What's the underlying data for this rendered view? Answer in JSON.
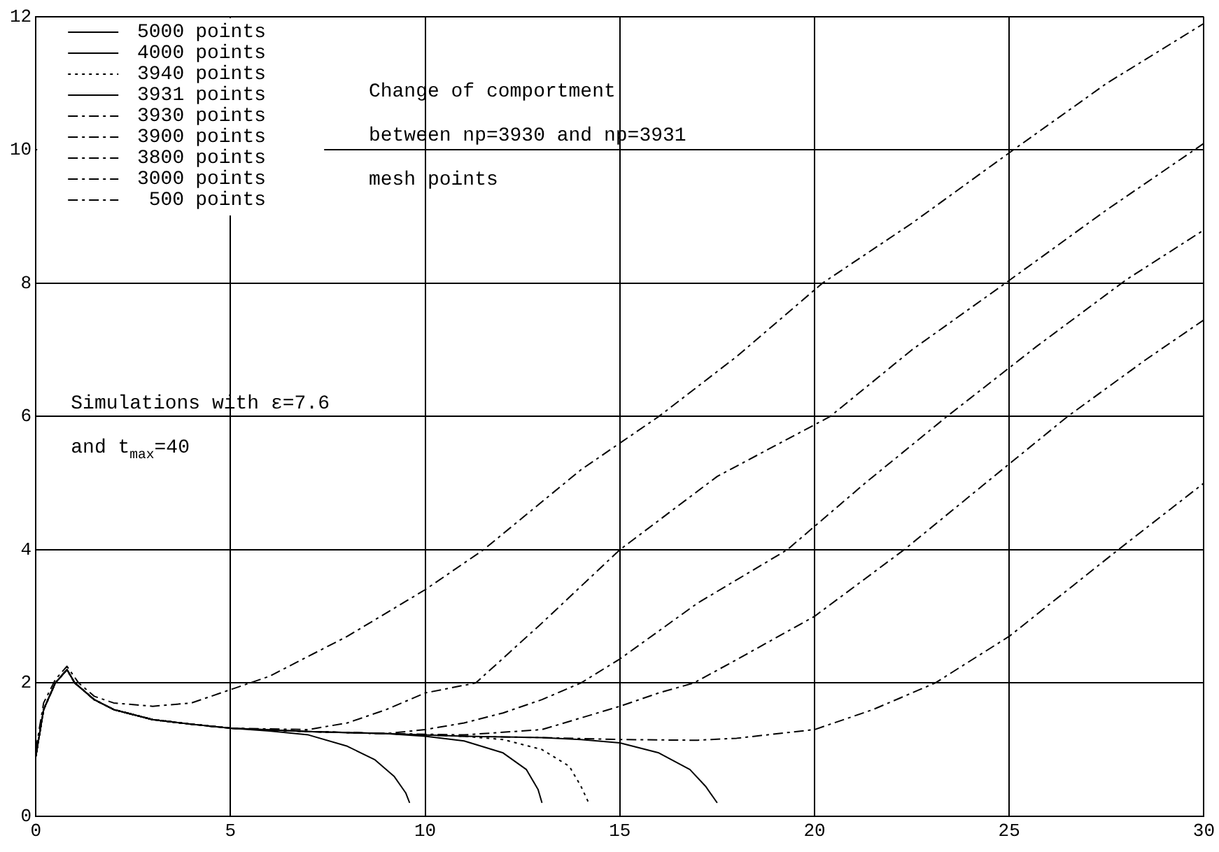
{
  "chart_data": {
    "type": "line",
    "xlim": [
      0,
      30
    ],
    "ylim": [
      0,
      12
    ],
    "xticks": [
      0,
      5,
      10,
      15,
      20,
      25,
      30
    ],
    "yticks": [
      0,
      2,
      4,
      6,
      8,
      10,
      12
    ],
    "grid": true,
    "legend": "top left",
    "marker": "none",
    "annotations": [
      "Change of comportment",
      "between np=3930 and np=3931",
      "mesh points",
      "Simulations with ε=7.6",
      "and t$_{max}$=40"
    ],
    "series": [
      {
        "name": "5000 points",
        "color": "#000000",
        "line_style": "solid",
        "x": [
          0,
          0.2,
          0.5,
          0.8,
          1,
          1.5,
          2,
          3,
          4,
          5,
          6,
          7,
          8,
          8.7,
          9.2,
          9.5,
          9.6
        ],
        "values": [
          0.9,
          1.6,
          2.0,
          2.2,
          2.0,
          1.75,
          1.6,
          1.45,
          1.38,
          1.32,
          1.28,
          1.22,
          1.05,
          0.85,
          0.6,
          0.35,
          0.2
        ]
      },
      {
        "name": "4000 points",
        "color": "#000000",
        "line_style": "solid",
        "x": [
          0,
          0.2,
          0.5,
          0.8,
          1,
          1.5,
          2,
          3,
          4,
          5,
          7,
          9,
          10,
          11,
          12,
          12.6,
          12.9,
          13.0
        ],
        "values": [
          0.9,
          1.6,
          2.0,
          2.2,
          2.0,
          1.75,
          1.6,
          1.45,
          1.38,
          1.32,
          1.27,
          1.24,
          1.2,
          1.13,
          0.95,
          0.7,
          0.4,
          0.2
        ]
      },
      {
        "name": "3940 points",
        "color": "#000000",
        "line_style": "dotted",
        "x": [
          0,
          0.2,
          0.5,
          0.8,
          1,
          1.5,
          2,
          3,
          4,
          5,
          7,
          9,
          10,
          11,
          12,
          13,
          13.7,
          14.0,
          14.2
        ],
        "values": [
          0.9,
          1.6,
          2.0,
          2.2,
          2.0,
          1.75,
          1.6,
          1.45,
          1.38,
          1.32,
          1.27,
          1.24,
          1.22,
          1.2,
          1.15,
          1.0,
          0.75,
          0.45,
          0.2
        ]
      },
      {
        "name": "3931 points",
        "color": "#000000",
        "line_style": "solid",
        "x": [
          0,
          0.2,
          0.5,
          0.8,
          1,
          1.5,
          2,
          3,
          4,
          5,
          7,
          9,
          11,
          13,
          14,
          15,
          16,
          16.8,
          17.2,
          17.5
        ],
        "values": [
          0.9,
          1.6,
          2.0,
          2.2,
          2.0,
          1.75,
          1.6,
          1.45,
          1.38,
          1.32,
          1.27,
          1.24,
          1.2,
          1.18,
          1.15,
          1.1,
          0.95,
          0.7,
          0.45,
          0.2
        ]
      },
      {
        "name": "3930 points",
        "color": "#000000",
        "line_style": "dashed",
        "x": [
          0,
          0.2,
          0.5,
          0.8,
          1,
          1.5,
          2,
          3,
          4,
          5,
          7,
          9,
          11,
          13,
          15,
          17,
          18,
          20,
          21.5,
          23.1,
          25,
          27.8,
          30
        ],
        "values": [
          0.9,
          1.6,
          2.0,
          2.2,
          2.0,
          1.75,
          1.6,
          1.45,
          1.38,
          1.32,
          1.27,
          1.24,
          1.2,
          1.18,
          1.15,
          1.14,
          1.17,
          1.3,
          1.6,
          2,
          2.7,
          4,
          5.0
        ]
      },
      {
        "name": "3900 points",
        "color": "#000000",
        "line_style": "dashed",
        "x": [
          0,
          0.2,
          0.5,
          0.8,
          1,
          1.5,
          2,
          3,
          4,
          5,
          7,
          9,
          11,
          13,
          15,
          16,
          16.9,
          18,
          20,
          22.3,
          24.5,
          26.5,
          28.5,
          30
        ],
        "values": [
          0.9,
          1.6,
          2.0,
          2.2,
          2.0,
          1.75,
          1.6,
          1.45,
          1.38,
          1.32,
          1.27,
          1.24,
          1.22,
          1.3,
          1.65,
          1.85,
          2,
          2.35,
          3.0,
          4,
          5.05,
          6,
          6.85,
          7.45
        ]
      },
      {
        "name": "3800 points",
        "color": "#000000",
        "line_style": "dashed",
        "x": [
          0,
          0.2,
          0.5,
          0.8,
          1,
          1.5,
          2,
          3,
          4,
          5,
          7,
          9,
          10,
          11,
          12,
          13,
          14,
          15,
          17,
          19.3,
          21.3,
          23.4,
          25.7,
          28,
          30
        ],
        "values": [
          0.9,
          1.6,
          2.0,
          2.2,
          2.0,
          1.75,
          1.6,
          1.45,
          1.38,
          1.32,
          1.27,
          1.24,
          1.3,
          1.4,
          1.55,
          1.75,
          2,
          2.36,
          3.2,
          4,
          5,
          6,
          7.05,
          8.05,
          8.8
        ]
      },
      {
        "name": "3000 points",
        "color": "#000000",
        "line_style": "dashed",
        "x": [
          0,
          0.2,
          0.5,
          0.8,
          1,
          1.5,
          2,
          3,
          4,
          5,
          7,
          8,
          9,
          10,
          11.3,
          13,
          15,
          17.5,
          20.4,
          22.5,
          24.9,
          27.5,
          30
        ],
        "values": [
          0.9,
          1.6,
          2.0,
          2.2,
          2.0,
          1.75,
          1.6,
          1.45,
          1.38,
          1.32,
          1.3,
          1.4,
          1.6,
          1.85,
          2,
          2.9,
          4,
          5.1,
          6,
          7,
          8,
          9.1,
          10.1
        ]
      },
      {
        "name": "500 points",
        "color": "#000000",
        "line_style": "dashed",
        "x": [
          0,
          0.2,
          0.5,
          0.8,
          1.1,
          1.5,
          2,
          3,
          4,
          5,
          6,
          7,
          8,
          10,
          11.5,
          14,
          16,
          18,
          20.2,
          22.5,
          25.1,
          27.5,
          30
        ],
        "values": [
          1.0,
          1.7,
          2.05,
          2.25,
          2.0,
          1.8,
          1.7,
          1.65,
          1.7,
          1.9,
          2.1,
          2.4,
          2.7,
          3.4,
          4,
          5.2,
          6,
          6.9,
          8,
          8.9,
          10,
          11,
          11.9
        ]
      }
    ]
  }
}
